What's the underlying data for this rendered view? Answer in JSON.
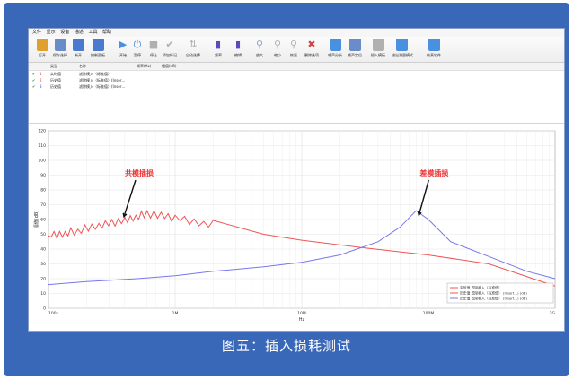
{
  "menu": [
    "文件",
    "显示",
    "设备",
    "描述",
    "工具",
    "帮助"
  ],
  "toolbar": [
    {
      "icon": "folder-open-icon",
      "label": "打开",
      "color": "#e0a030"
    },
    {
      "icon": "save-icon",
      "label": "保存选择",
      "color": "#6a8cc8"
    },
    {
      "icon": "new-icon",
      "label": "新开",
      "color": "#4a7ad0"
    },
    {
      "icon": "settings-icon",
      "label": "控制面板",
      "color": "#4a7ad0"
    },
    {
      "icon": "play-icon",
      "label": "开始",
      "color": "#4a90e0"
    },
    {
      "icon": "power-icon",
      "label": "暂停",
      "color": "#4a90e0"
    },
    {
      "icon": "stop-icon",
      "label": "停止",
      "color": "#b0b0b0"
    },
    {
      "icon": "add-marker-icon",
      "label": "添加标记",
      "color": "#b0b0b0"
    },
    {
      "icon": "auto-select-icon",
      "label": "自动选择",
      "color": "#b0b0b0"
    },
    {
      "icon": "series-icon",
      "label": "频率",
      "color": "#5a4ac0"
    },
    {
      "icon": "edit-icon",
      "label": "编辑",
      "color": "#5a4ac0"
    },
    {
      "icon": "zoom-in-icon",
      "label": "放大",
      "color": "#8aa0c8"
    },
    {
      "icon": "zoom-out-icon",
      "label": "缩小",
      "color": "#b0b0b0"
    },
    {
      "icon": "restore-icon",
      "label": "恢复",
      "color": "#b0b0b0"
    },
    {
      "icon": "delete-icon",
      "label": "删除选项",
      "color": "#d04040"
    },
    {
      "icon": "noise-analysis-icon",
      "label": "噪声分析",
      "color": "#4a90e0"
    },
    {
      "icon": "noise-locate-icon",
      "label": "噪声定位",
      "color": "#6a8cc8"
    },
    {
      "icon": "insert-template-icon",
      "label": "插入模板",
      "color": "#b0b0b0"
    },
    {
      "icon": "enter-measure-icon",
      "label": "进出测量模式",
      "color": "#4a90e0"
    },
    {
      "icon": "simulate-icon",
      "label": "仿真软件",
      "color": "#4a90e0"
    }
  ],
  "list_headers": {
    "type": "类型",
    "name": "名称",
    "freq": "频率(Hz)",
    "val": "幅值(dB)"
  },
  "rows": [
    {
      "check": "✔",
      "num": "1",
      "type": "实时值",
      "name": "滤除模入（标准值）"
    },
    {
      "check": "✔",
      "num": "2",
      "type": "历史值",
      "name": "滤除模入（标准值）(Inser…"
    },
    {
      "check": "✔",
      "num": "3",
      "type": "历史值",
      "name": "滤除模入（标准值）(Inser…"
    }
  ],
  "caption": "图五：插入损耗测试",
  "chart_data": {
    "type": "line",
    "ylabel": "幅值(dB)",
    "xlabel": "Hz",
    "ylim": [
      0,
      120
    ],
    "yticks": [
      "0",
      "10",
      "20",
      "30",
      "40",
      "50",
      "60",
      "70",
      "80",
      "90",
      "100",
      "110",
      "120"
    ],
    "xscale": "log",
    "xlim": [
      100000,
      1000000000
    ],
    "xticks": [
      "100k",
      "1M",
      "10M",
      "100M",
      "1G"
    ],
    "grid": true,
    "colors": {
      "red": "#ee5555",
      "blue": "#7777ee"
    },
    "annotations": [
      {
        "text": "共模插损",
        "x": 1000000,
        "y": 67
      },
      {
        "text": "差模插损",
        "x": 80000000,
        "y": 67
      }
    ],
    "legend_position": "bottom-right",
    "series": [
      {
        "name": "实时值 滤除模入（标准值）",
        "color": "#ee5555",
        "x": [
          100000,
          150000,
          250000,
          400000,
          600000,
          1000000,
          2000000,
          5000000,
          10000000,
          30000000,
          100000000,
          300000000,
          1000000000
        ],
        "y": [
          49,
          51,
          55,
          60,
          63,
          61,
          56,
          50,
          46,
          41,
          36,
          30,
          15
        ]
      },
      {
        "name": "历史值 滤除模入（标准值） (Insert…) (dB)",
        "color": "#ee5555",
        "x": [
          100000,
          1000000000
        ],
        "y": [
          null,
          null
        ]
      },
      {
        "name": "历史值 滤除模入（标准值） (Insert…) (dB)",
        "color": "#7777ee",
        "x": [
          100000,
          200000,
          500000,
          1000000,
          2000000,
          5000000,
          10000000,
          20000000,
          40000000,
          60000000,
          80000000,
          100000000,
          150000000,
          300000000,
          600000000,
          1000000000
        ],
        "y": [
          16,
          18,
          20,
          22,
          25,
          28,
          31,
          36,
          45,
          55,
          66,
          60,
          45,
          35,
          25,
          20
        ]
      }
    ]
  }
}
